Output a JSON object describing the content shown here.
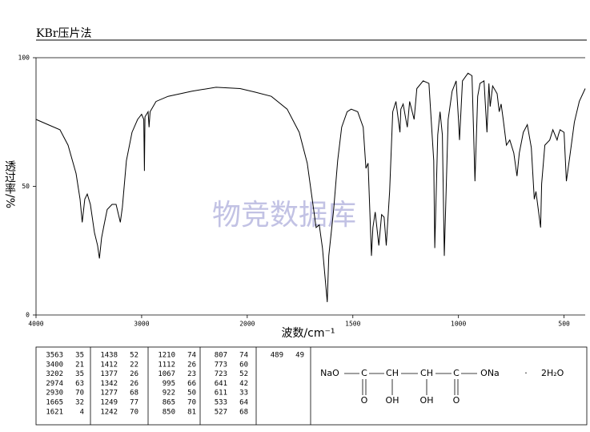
{
  "chart_data": {
    "type": "line",
    "title": "KBr压片法",
    "xlabel": "波数/cm⁻¹",
    "ylabel": "透过率/%",
    "watermark": "物竞数据库",
    "color": "#000000",
    "xlim": [
      4000,
      400
    ],
    "xticks": [
      4000,
      3000,
      2000,
      1500,
      1000,
      500
    ],
    "ylim": [
      0,
      100
    ],
    "yticks": [
      0,
      50,
      100
    ],
    "x": [
      4000,
      3886,
      3773,
      3697,
      3621,
      3583,
      3563,
      3538,
      3515,
      3485,
      3447,
      3417,
      3400,
      3379,
      3356,
      3326,
      3280,
      3242,
      3202,
      3182,
      3144,
      3091,
      3038,
      3000,
      2980,
      2974,
      2968,
      2939,
      2930,
      2920,
      2864,
      2750,
      2523,
      2295,
      2068,
      1962,
      1886,
      1811,
      1754,
      1716,
      1689,
      1674,
      1659,
      1644,
      1621,
      1614,
      1591,
      1572,
      1553,
      1527,
      1508,
      1477,
      1451,
      1438,
      1428,
      1412,
      1405,
      1394,
      1377,
      1364,
      1352,
      1342,
      1326,
      1311,
      1296,
      1277,
      1273,
      1262,
      1249,
      1242,
      1231,
      1210,
      1197,
      1167,
      1140,
      1117,
      1112,
      1098,
      1087,
      1076,
      1067,
      1049,
      1030,
      1011,
      1000,
      995,
      981,
      955,
      936,
      922,
      909,
      898,
      879,
      865,
      856,
      850,
      838,
      817,
      807,
      798,
      788,
      773,
      757,
      738,
      723,
      712,
      693,
      674,
      655,
      641,
      633,
      611,
      606,
      591,
      568,
      553,
      533,
      527,
      519,
      500,
      489,
      474,
      451,
      428,
      400
    ],
    "values": [
      76,
      74,
      72,
      66,
      55,
      45,
      36,
      45,
      47,
      43,
      32,
      27,
      22,
      30,
      35,
      41,
      43,
      43,
      36,
      42,
      60,
      71,
      76,
      78,
      76,
      56,
      77,
      79,
      73,
      79,
      83,
      85,
      87,
      88.5,
      88,
      86.6,
      85,
      80,
      71,
      59,
      43,
      34,
      35,
      26,
      5,
      23,
      41,
      60,
      73,
      79,
      80,
      79,
      73,
      57,
      59,
      23,
      34,
      40,
      27,
      39,
      38,
      27,
      48,
      79,
      83,
      71,
      80,
      82,
      76,
      73,
      83,
      76,
      88,
      91,
      90,
      60,
      26,
      70,
      79,
      70,
      23,
      76,
      87,
      91,
      76,
      68,
      91,
      94,
      93,
      52,
      85,
      90,
      91,
      71,
      90,
      81,
      89,
      86,
      79,
      82,
      76,
      66,
      68,
      63,
      54,
      63,
      71,
      74,
      65,
      45,
      48,
      34,
      51,
      66,
      68,
      72,
      68,
      70,
      72,
      71,
      52,
      61,
      75,
      83,
      88
    ]
  },
  "peak_table": [
    [
      [
        3563,
        35
      ],
      [
        3400,
        21
      ],
      [
        3202,
        35
      ],
      [
        2974,
        63
      ],
      [
        2930,
        70
      ],
      [
        1665,
        32
      ],
      [
        1621,
        4
      ]
    ],
    [
      [
        1438,
        52
      ],
      [
        1412,
        22
      ],
      [
        1377,
        26
      ],
      [
        1342,
        26
      ],
      [
        1277,
        68
      ],
      [
        1249,
        77
      ],
      [
        1242,
        70
      ]
    ],
    [
      [
        1210,
        74
      ],
      [
        1112,
        26
      ],
      [
        1067,
        23
      ],
      [
        995,
        66
      ],
      [
        922,
        50
      ],
      [
        865,
        70
      ],
      [
        850,
        81
      ]
    ],
    [
      [
        807,
        74
      ],
      [
        773,
        60
      ],
      [
        723,
        52
      ],
      [
        641,
        42
      ],
      [
        611,
        33
      ],
      [
        533,
        64
      ],
      [
        527,
        68
      ]
    ],
    [
      [
        489,
        49
      ]
    ]
  ],
  "structure": {
    "main": [
      "NaO",
      "C",
      "CH",
      "CH",
      "C",
      "ONa"
    ],
    "dot": "·",
    "water": "2H₂O",
    "sub": [
      "O",
      "OH",
      "OH",
      "O"
    ]
  }
}
